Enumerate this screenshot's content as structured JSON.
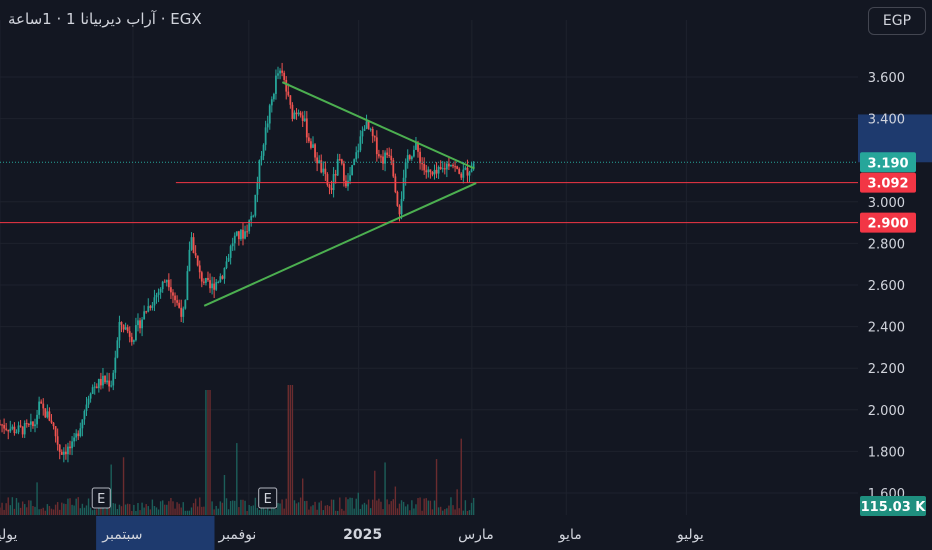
{
  "header": {
    "title_text": "آراب ديربيانا 1 · 1ساعة · EGX",
    "currency_label": "EGP"
  },
  "colors": {
    "background": "#131722",
    "grid": "#1e222d",
    "up_candle": "#26a69a",
    "down_candle": "#ef5350",
    "trendline": "#4caf50",
    "horizontal_line": "#f23645",
    "last_price_badge": "#26a69a",
    "volume_badge": "#1f8f7f",
    "highlight_band": "#1e3a6e"
  },
  "chart_data": {
    "type": "candlestick",
    "title": "",
    "y_axis": {
      "min": 1.5,
      "max": 3.9,
      "tick_labels": [
        "3.600",
        "3.400",
        "3.000",
        "2.800",
        "2.600",
        "2.400",
        "2.200",
        "2.000",
        "1.800",
        "1.600"
      ],
      "ticks": [
        3.6,
        3.4,
        3.0,
        2.8,
        2.6,
        2.4,
        2.2,
        2.0,
        1.8,
        1.6
      ]
    },
    "x_axis": {
      "labels": [
        "يوليو",
        "سبتمبر",
        "نوفمبر",
        "2025",
        "مارس",
        "مايو",
        "يوليو"
      ]
    },
    "price_badges": [
      {
        "label": "3.190",
        "value": 3.19,
        "kind": "last"
      },
      {
        "label": "3.092",
        "value": 3.092,
        "kind": "line"
      },
      {
        "label": "2.900",
        "value": 2.9,
        "kind": "line"
      }
    ],
    "volume_badge": "115.03 K",
    "highlight_price_range": [
      3.19,
      3.42
    ],
    "horizontal_lines": [
      3.092,
      2.9
    ],
    "trendlines": [
      {
        "name": "upper",
        "from": [
          0.329,
          3.575
        ],
        "to": [
          0.553,
          3.16
        ]
      },
      {
        "name": "lower",
        "from": [
          0.238,
          2.5
        ],
        "to": [
          0.555,
          3.09
        ]
      }
    ],
    "earnings_markers": [
      "E",
      "E"
    ],
    "price_path": [
      [
        0.0,
        1.93
      ],
      [
        0.02,
        1.9
      ],
      [
        0.04,
        1.92
      ],
      [
        0.045,
        2.02
      ],
      [
        0.06,
        1.95
      ],
      [
        0.07,
        1.8
      ],
      [
        0.085,
        1.82
      ],
      [
        0.095,
        1.95
      ],
      [
        0.105,
        2.1
      ],
      [
        0.12,
        2.14
      ],
      [
        0.13,
        2.13
      ],
      [
        0.14,
        2.42
      ],
      [
        0.155,
        2.35
      ],
      [
        0.17,
        2.48
      ],
      [
        0.185,
        2.57
      ],
      [
        0.195,
        2.64
      ],
      [
        0.205,
        2.52
      ],
      [
        0.215,
        2.45
      ],
      [
        0.222,
        2.85
      ],
      [
        0.232,
        2.65
      ],
      [
        0.245,
        2.58
      ],
      [
        0.26,
        2.66
      ],
      [
        0.272,
        2.82
      ],
      [
        0.285,
        2.85
      ],
      [
        0.295,
        2.95
      ],
      [
        0.305,
        3.25
      ],
      [
        0.315,
        3.45
      ],
      [
        0.323,
        3.62
      ],
      [
        0.33,
        3.6
      ],
      [
        0.34,
        3.42
      ],
      [
        0.35,
        3.45
      ],
      [
        0.36,
        3.3
      ],
      [
        0.375,
        3.15
      ],
      [
        0.385,
        3.05
      ],
      [
        0.395,
        3.2
      ],
      [
        0.405,
        3.08
      ],
      [
        0.415,
        3.22
      ],
      [
        0.425,
        3.38
      ],
      [
        0.435,
        3.3
      ],
      [
        0.445,
        3.2
      ],
      [
        0.455,
        3.25
      ],
      [
        0.465,
        2.95
      ],
      [
        0.475,
        3.22
      ],
      [
        0.485,
        3.26
      ],
      [
        0.495,
        3.15
      ],
      [
        0.505,
        3.12
      ],
      [
        0.515,
        3.15
      ],
      [
        0.525,
        3.2
      ],
      [
        0.535,
        3.13
      ],
      [
        0.545,
        3.15
      ],
      [
        0.553,
        3.19
      ]
    ]
  }
}
